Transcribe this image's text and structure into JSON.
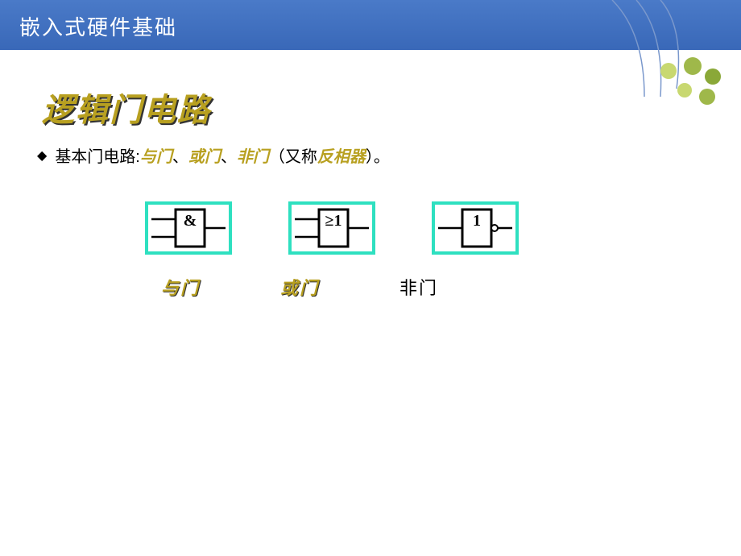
{
  "header": {
    "title": "嵌入式硬件基础",
    "bg_gradient_top": "#4a7ac8",
    "bg_gradient_bottom": "#3968b8",
    "title_color": "#ffffff"
  },
  "decoration": {
    "line_color": "#7a98cc",
    "dot_colors": [
      "#9fb84a",
      "#c8d870",
      "#8aa838"
    ]
  },
  "slide": {
    "title": "逻辑门电路",
    "title_color": "#b8a020",
    "bullet": {
      "prefix": "基本门电路:",
      "parts": [
        {
          "text": "与门",
          "hl": true
        },
        {
          "text": "、",
          "hl": false
        },
        {
          "text": "或门",
          "hl": true
        },
        {
          "text": "、",
          "hl": false
        },
        {
          "text": "非门",
          "hl": true
        },
        {
          "text": "（又称",
          "hl": false
        },
        {
          "text": "反相器",
          "hl": true
        },
        {
          "text": "）。",
          "hl": false
        }
      ]
    }
  },
  "gates": [
    {
      "id": "and",
      "symbol": "&",
      "label": "与门",
      "label_hl": true,
      "border_color": "#2ee0c0",
      "inputs": 2,
      "has_bubble": false
    },
    {
      "id": "or",
      "symbol": "≥1",
      "label": "或门",
      "label_hl": true,
      "border_color": "#2ee0c0",
      "inputs": 2,
      "has_bubble": false
    },
    {
      "id": "not",
      "symbol": "1",
      "label": "非门",
      "label_hl": false,
      "border_color": "#2ee0c0",
      "inputs": 1,
      "has_bubble": true
    }
  ]
}
